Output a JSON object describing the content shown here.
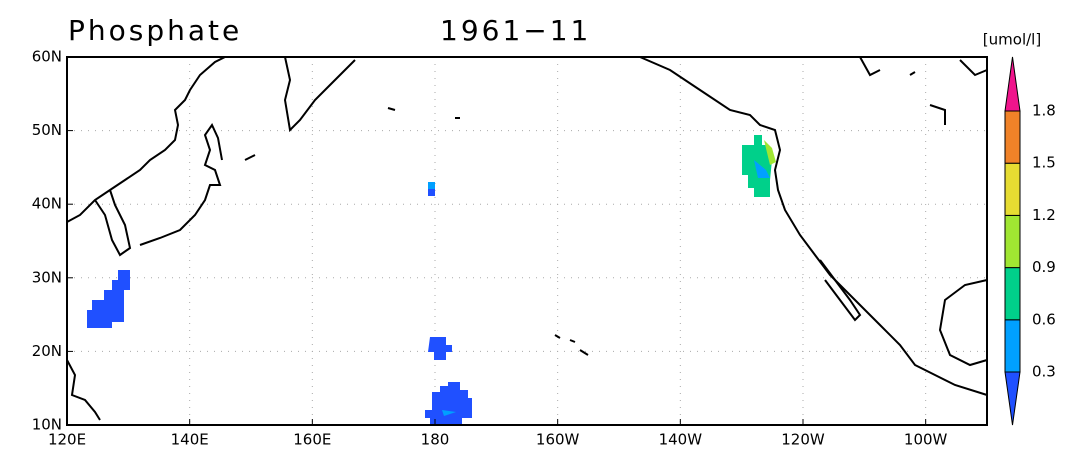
{
  "title": "Phosphate",
  "date": "1961−11",
  "units": "[umol/l]",
  "lon_ticks": [
    "120E",
    "140E",
    "160E",
    "180",
    "160W",
    "140W",
    "120W",
    "100W"
  ],
  "lat_ticks": [
    "10N",
    "20N",
    "30N",
    "40N",
    "50N",
    "60N"
  ],
  "colorbar": {
    "levels": [
      0.3,
      0.6,
      0.9,
      1.2,
      1.5,
      1.8
    ],
    "colors": [
      "#2050ff",
      "#00a0ff",
      "#00d08a",
      "#a0e632",
      "#e6dc32",
      "#f08228",
      "#f0148c"
    ]
  }
}
